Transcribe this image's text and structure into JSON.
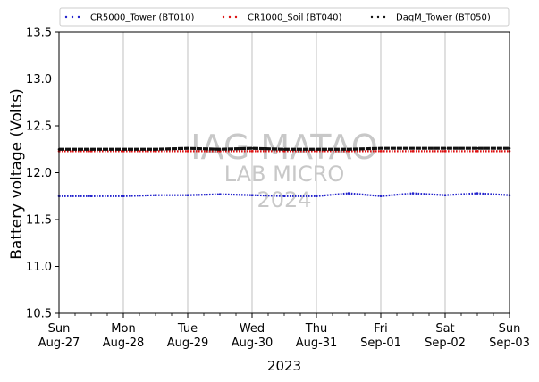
{
  "chart_data": {
    "type": "line",
    "xlabel": "2023",
    "ylabel": "Battery voltage (Volts)",
    "ylim": [
      10.5,
      13.5
    ],
    "y_ticks": [
      "10.5",
      "11.0",
      "11.5",
      "12.0",
      "12.5",
      "13.0",
      "13.5"
    ],
    "x_range": [
      "2023-08-27",
      "2023-09-03"
    ],
    "x_ticks": [
      {
        "day": "Sun",
        "date": "Aug-27"
      },
      {
        "day": "Mon",
        "date": "Aug-28"
      },
      {
        "day": "Tue",
        "date": "Aug-29"
      },
      {
        "day": "Wed",
        "date": "Aug-30"
      },
      {
        "day": "Thu",
        "date": "Aug-31"
      },
      {
        "day": "Fri",
        "date": "Sep-01"
      },
      {
        "day": "Sat",
        "date": "Sep-02"
      },
      {
        "day": "Sun",
        "date": "Sep-03"
      }
    ],
    "grid": "vertical-major",
    "legend_position": "top",
    "series": [
      {
        "name": "CR5000_Tower (BT010)",
        "color": "#2222cc",
        "x": [
          "2023-08-27",
          "2023-08-27T12:00",
          "2023-08-28",
          "2023-08-28T12:00",
          "2023-08-29",
          "2023-08-29T12:00",
          "2023-08-30",
          "2023-08-30T12:00",
          "2023-08-31",
          "2023-08-31T12:00",
          "2023-09-01",
          "2023-09-01T12:00",
          "2023-09-02",
          "2023-09-02T12:00",
          "2023-09-03"
        ],
        "values": [
          11.75,
          11.75,
          11.75,
          11.76,
          11.76,
          11.77,
          11.76,
          11.75,
          11.75,
          11.78,
          11.75,
          11.78,
          11.76,
          11.78,
          11.76
        ]
      },
      {
        "name": "CR1000_Soil (BT040)",
        "color": "#dd1111",
        "x": [
          "2023-08-27",
          "2023-08-27T12:00",
          "2023-08-28",
          "2023-08-28T12:00",
          "2023-08-29",
          "2023-08-29T12:00",
          "2023-08-30",
          "2023-08-30T12:00",
          "2023-08-31",
          "2023-08-31T12:00",
          "2023-09-01",
          "2023-09-01T12:00",
          "2023-09-02",
          "2023-09-02T12:00",
          "2023-09-03"
        ],
        "values": [
          12.23,
          12.23,
          12.23,
          12.23,
          12.23,
          12.23,
          12.23,
          12.23,
          12.23,
          12.23,
          12.23,
          12.23,
          12.23,
          12.23,
          12.23
        ]
      },
      {
        "name": "DaqM_Tower (BT050)",
        "color": "#111111",
        "x": [
          "2023-08-27",
          "2023-08-27T12:00",
          "2023-08-28",
          "2023-08-28T12:00",
          "2023-08-29",
          "2023-08-29T12:00",
          "2023-08-30",
          "2023-08-30T12:00",
          "2023-08-31",
          "2023-08-31T12:00",
          "2023-09-01",
          "2023-09-01T12:00",
          "2023-09-02",
          "2023-09-02T12:00",
          "2023-09-03"
        ],
        "values": [
          12.25,
          12.25,
          12.25,
          12.25,
          12.26,
          12.25,
          12.26,
          12.25,
          12.25,
          12.25,
          12.26,
          12.26,
          12.26,
          12.26,
          12.26
        ]
      }
    ],
    "watermark": {
      "line1": "IAG MATAO",
      "line2": "LAB MICRO",
      "line3": "2024"
    }
  }
}
